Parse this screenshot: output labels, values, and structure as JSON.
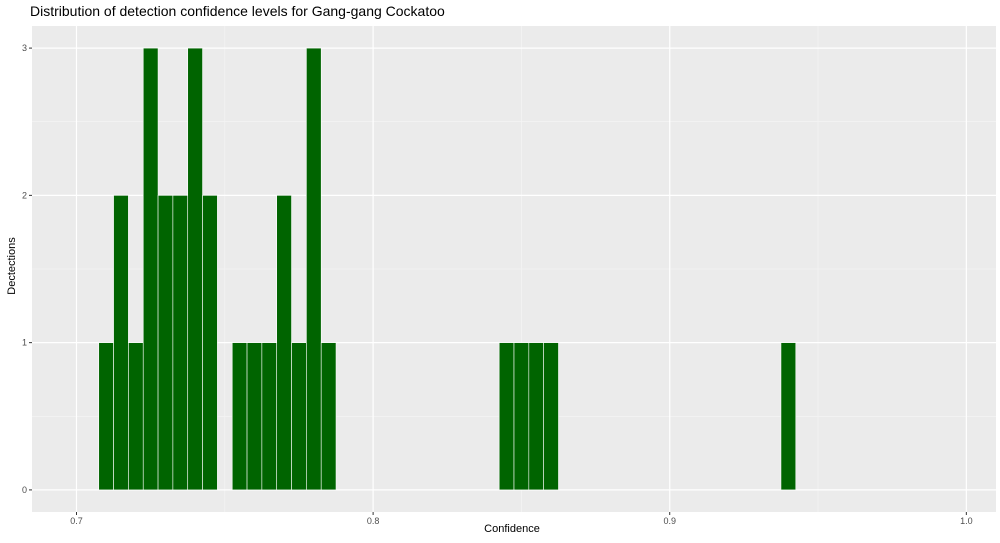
{
  "chart_data": {
    "type": "bar",
    "title": "Distribution of detection confidence levels for Gang-gang Cockatoo",
    "xlabel": "Confidence",
    "ylabel": "Dectections",
    "bin_width": 0.005,
    "x": [
      0.71,
      0.715,
      0.72,
      0.725,
      0.73,
      0.735,
      0.74,
      0.745,
      0.755,
      0.76,
      0.765,
      0.77,
      0.775,
      0.78,
      0.785,
      0.845,
      0.85,
      0.855,
      0.86,
      0.94
    ],
    "values": [
      1,
      2,
      1,
      3,
      2,
      2,
      3,
      2,
      1,
      1,
      1,
      2,
      1,
      3,
      1,
      1,
      1,
      1,
      1,
      1
    ],
    "xlim": [
      0.685,
      1.01
    ],
    "ylim": [
      -0.15,
      3.15
    ],
    "x_ticks": [
      "0.7",
      "0.8",
      "0.9",
      "1.0"
    ],
    "y_ticks": [
      "0",
      "1",
      "2",
      "3"
    ],
    "grid": true,
    "bar_color": "#006400",
    "background": "#ebebeb"
  }
}
